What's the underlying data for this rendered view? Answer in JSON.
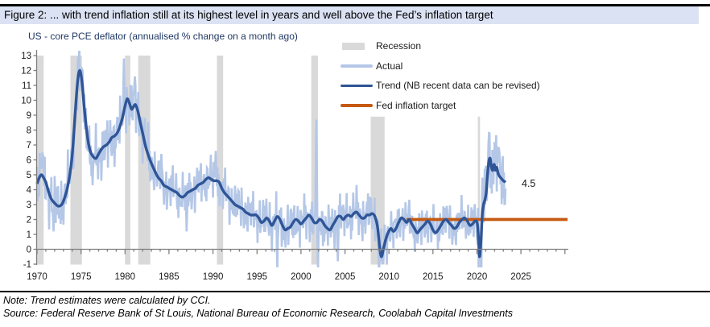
{
  "title": "Figure 2: ... with trend inflation still at its highest level in years and well above the Fed’s inflation target",
  "subtitle": "US - core PCE deflator (annualised % change on a month ago)",
  "legend": {
    "items": [
      {
        "label": "Recession",
        "swatch": "bar",
        "color": "#d9d9d9"
      },
      {
        "label": "Actual",
        "swatch": "line",
        "color": "#b4c7e7"
      },
      {
        "label": "Trend (NB recent data can be revised)",
        "swatch": "line",
        "color": "#2f5597"
      },
      {
        "label": "Fed inflation target",
        "swatch": "line",
        "color": "#c55a11"
      }
    ]
  },
  "notes": [
    "Note: Trend estimates were calculated by CCI.",
    "Source: Federal Reserve Bank of St Louis, National Bureau of Economic Research, Coolabah Capital Investments"
  ],
  "colors": {
    "title_band": "#dbe2f3",
    "subtitle": "#1f3864",
    "actual": "#b4c7e7",
    "trend": "#2f5597",
    "target": "#c55a11",
    "recession": "#d9d9d9",
    "axis": "#7f7f7f",
    "text": "#1a1a1a",
    "rule": "#000000"
  },
  "chart_data": {
    "type": "line",
    "title": "US - core PCE deflator (annualised % change on a month ago)",
    "xlabel": "",
    "ylabel": "",
    "xlim": [
      1970,
      2030.3
    ],
    "ylim": [
      -1,
      13
    ],
    "grid": false,
    "legend_position": "top-right-inside",
    "x_ticks": [
      "1970",
      "1975",
      "1980",
      "1985",
      "1990",
      "1995",
      "2000",
      "2005",
      "2010",
      "2015",
      "2020",
      "2025"
    ],
    "y_ticks": [
      13,
      12,
      11,
      10,
      9,
      8,
      7,
      6,
      5,
      4,
      3,
      2,
      1,
      0,
      -1
    ],
    "recessions": [
      {
        "from": 1970.0,
        "to": 1970.75,
        "top": 13
      },
      {
        "from": 1973.8,
        "to": 1975.1,
        "top": 13
      },
      {
        "from": 1980.0,
        "to": 1980.6,
        "top": 13
      },
      {
        "from": 1981.5,
        "to": 1982.87,
        "top": 13
      },
      {
        "from": 1990.45,
        "to": 1991.15,
        "top": 13
      },
      {
        "from": 2001.17,
        "to": 2001.92,
        "top": 13
      },
      {
        "from": 2007.92,
        "to": 2009.5,
        "top": 8.9
      },
      {
        "from": 2020.1,
        "to": 2020.35,
        "top": 8.9
      }
    ],
    "fed_target": {
      "value": 2,
      "from": 2012.0,
      "to": 2030.3
    },
    "end_label": {
      "text": "4.5",
      "year": 2025.0,
      "value": 4.4
    },
    "series_names": [
      "Actual",
      "Trend"
    ],
    "trend_points": [
      [
        1970.0,
        4.4
      ],
      [
        1970.25,
        4.8
      ],
      [
        1970.5,
        5.0
      ],
      [
        1970.75,
        4.8
      ],
      [
        1971.0,
        4.5
      ],
      [
        1971.3,
        3.9
      ],
      [
        1971.6,
        3.4
      ],
      [
        1972.0,
        3.1
      ],
      [
        1972.4,
        2.9
      ],
      [
        1972.8,
        3.0
      ],
      [
        1973.1,
        3.4
      ],
      [
        1973.4,
        4.0
      ],
      [
        1973.7,
        4.9
      ],
      [
        1974.0,
        6.3
      ],
      [
        1974.3,
        8.8
      ],
      [
        1974.6,
        11.2
      ],
      [
        1974.85,
        12.0
      ],
      [
        1975.1,
        11.3
      ],
      [
        1975.35,
        9.6
      ],
      [
        1975.6,
        8.2
      ],
      [
        1975.85,
        7.1
      ],
      [
        1976.1,
        6.5
      ],
      [
        1976.4,
        6.2
      ],
      [
        1976.7,
        6.1
      ],
      [
        1977.0,
        6.4
      ],
      [
        1977.3,
        6.7
      ],
      [
        1977.6,
        6.9
      ],
      [
        1977.9,
        7.0
      ],
      [
        1978.2,
        7.2
      ],
      [
        1978.5,
        7.5
      ],
      [
        1978.8,
        7.6
      ],
      [
        1979.1,
        7.8
      ],
      [
        1979.4,
        8.2
      ],
      [
        1979.7,
        8.8
      ],
      [
        1980.0,
        9.6
      ],
      [
        1980.25,
        10.1
      ],
      [
        1980.5,
        9.8
      ],
      [
        1980.75,
        9.4
      ],
      [
        1981.0,
        9.6
      ],
      [
        1981.2,
        9.7
      ],
      [
        1981.45,
        9.3
      ],
      [
        1981.7,
        8.6
      ],
      [
        1982.0,
        7.8
      ],
      [
        1982.3,
        7.0
      ],
      [
        1982.6,
        6.4
      ],
      [
        1982.9,
        5.9
      ],
      [
        1983.2,
        5.5
      ],
      [
        1983.5,
        5.1
      ],
      [
        1983.8,
        4.8
      ],
      [
        1984.1,
        4.6
      ],
      [
        1984.4,
        4.3
      ],
      [
        1984.7,
        4.2
      ],
      [
        1985.0,
        4.1
      ],
      [
        1985.3,
        4.0
      ],
      [
        1985.6,
        3.9
      ],
      [
        1985.9,
        3.8
      ],
      [
        1986.2,
        3.6
      ],
      [
        1986.5,
        3.5
      ],
      [
        1986.8,
        3.6
      ],
      [
        1987.1,
        3.8
      ],
      [
        1987.4,
        3.9
      ],
      [
        1987.7,
        4.0
      ],
      [
        1988.0,
        4.1
      ],
      [
        1988.3,
        4.3
      ],
      [
        1988.6,
        4.4
      ],
      [
        1988.9,
        4.5
      ],
      [
        1989.2,
        4.7
      ],
      [
        1989.5,
        4.8
      ],
      [
        1989.8,
        4.7
      ],
      [
        1990.1,
        4.6
      ],
      [
        1990.4,
        4.6
      ],
      [
        1990.7,
        4.5
      ],
      [
        1991.0,
        4.1
      ],
      [
        1991.3,
        3.8
      ],
      [
        1991.6,
        3.6
      ],
      [
        1991.9,
        3.4
      ],
      [
        1992.2,
        3.2
      ],
      [
        1992.5,
        3.0
      ],
      [
        1992.8,
        2.9
      ],
      [
        1993.1,
        2.8
      ],
      [
        1993.4,
        2.7
      ],
      [
        1993.7,
        2.5
      ],
      [
        1994.0,
        2.4
      ],
      [
        1994.3,
        2.3
      ],
      [
        1994.6,
        2.3
      ],
      [
        1994.9,
        2.3
      ],
      [
        1995.2,
        2.1
      ],
      [
        1995.5,
        1.8
      ],
      [
        1995.8,
        1.9
      ],
      [
        1996.1,
        2.1
      ],
      [
        1996.4,
        1.9
      ],
      [
        1996.7,
        1.6
      ],
      [
        1997.0,
        1.9
      ],
      [
        1997.3,
        2.2
      ],
      [
        1997.6,
        2.0
      ],
      [
        1997.9,
        1.6
      ],
      [
        1998.2,
        1.3
      ],
      [
        1998.5,
        1.4
      ],
      [
        1998.8,
        1.5
      ],
      [
        1999.1,
        1.8
      ],
      [
        1999.4,
        2.0
      ],
      [
        1999.7,
        1.9
      ],
      [
        2000.0,
        1.7
      ],
      [
        2000.3,
        1.9
      ],
      [
        2000.6,
        2.1
      ],
      [
        2000.9,
        2.3
      ],
      [
        2001.2,
        2.1
      ],
      [
        2001.5,
        1.8
      ],
      [
        2001.8,
        1.8
      ],
      [
        2002.1,
        2.0
      ],
      [
        2002.4,
        1.9
      ],
      [
        2002.7,
        1.6
      ],
      [
        2003.0,
        1.4
      ],
      [
        2003.3,
        1.3
      ],
      [
        2003.6,
        1.6
      ],
      [
        2003.9,
        1.9
      ],
      [
        2004.2,
        2.2
      ],
      [
        2004.5,
        2.2
      ],
      [
        2004.8,
        2.0
      ],
      [
        2005.1,
        2.2
      ],
      [
        2005.4,
        2.3
      ],
      [
        2005.7,
        2.2
      ],
      [
        2006.0,
        2.4
      ],
      [
        2006.3,
        2.5
      ],
      [
        2006.6,
        2.3
      ],
      [
        2006.9,
        2.1
      ],
      [
        2007.2,
        2.1
      ],
      [
        2007.5,
        2.3
      ],
      [
        2007.8,
        2.3
      ],
      [
        2008.1,
        2.4
      ],
      [
        2008.4,
        2.2
      ],
      [
        2008.7,
        1.5
      ],
      [
        2008.95,
        0.1
      ],
      [
        2009.15,
        -0.5
      ],
      [
        2009.4,
        0.1
      ],
      [
        2009.65,
        0.7
      ],
      [
        2009.9,
        1.1
      ],
      [
        2010.2,
        1.4
      ],
      [
        2010.5,
        1.2
      ],
      [
        2010.8,
        1.4
      ],
      [
        2011.1,
        1.8
      ],
      [
        2011.4,
        2.1
      ],
      [
        2011.7,
        2.0
      ],
      [
        2012.0,
        1.8
      ],
      [
        2012.3,
        2.0
      ],
      [
        2012.6,
        1.7
      ],
      [
        2012.9,
        1.4
      ],
      [
        2013.2,
        1.1
      ],
      [
        2013.5,
        1.3
      ],
      [
        2013.8,
        1.5
      ],
      [
        2014.1,
        1.7
      ],
      [
        2014.4,
        1.9
      ],
      [
        2014.7,
        1.7
      ],
      [
        2015.0,
        1.3
      ],
      [
        2015.3,
        1.1
      ],
      [
        2015.6,
        1.3
      ],
      [
        2015.9,
        1.6
      ],
      [
        2016.2,
        1.9
      ],
      [
        2016.5,
        2.0
      ],
      [
        2016.8,
        1.8
      ],
      [
        2017.1,
        1.6
      ],
      [
        2017.4,
        1.4
      ],
      [
        2017.7,
        1.5
      ],
      [
        2018.0,
        1.8
      ],
      [
        2018.3,
        2.0
      ],
      [
        2018.6,
        2.1
      ],
      [
        2018.9,
        1.9
      ],
      [
        2019.2,
        1.6
      ],
      [
        2019.5,
        1.7
      ],
      [
        2019.8,
        1.9
      ],
      [
        2020.05,
        1.7
      ],
      [
        2020.2,
        0.5
      ],
      [
        2020.3,
        -0.5
      ],
      [
        2020.45,
        0.5
      ],
      [
        2020.6,
        2.3
      ],
      [
        2020.75,
        3.0
      ],
      [
        2020.9,
        3.3
      ],
      [
        2021.05,
        3.8
      ],
      [
        2021.2,
        5.0
      ],
      [
        2021.35,
        5.9
      ],
      [
        2021.5,
        6.1
      ],
      [
        2021.65,
        5.5
      ],
      [
        2021.8,
        5.3
      ],
      [
        2021.95,
        5.7
      ],
      [
        2022.1,
        5.3
      ],
      [
        2022.25,
        5.5
      ],
      [
        2022.4,
        5.1
      ],
      [
        2022.55,
        4.9
      ],
      [
        2022.7,
        4.8
      ],
      [
        2022.85,
        4.7
      ],
      [
        2023.0,
        4.6
      ],
      [
        2023.25,
        4.5
      ]
    ],
    "actual": {
      "description": "monthly annualised %MoM series; noisy band around trend",
      "range": [
        1970.0,
        2023.3
      ],
      "eras": [
        {
          "from": 1970,
          "to": 1983,
          "amp": 1.25
        },
        {
          "from": 1983,
          "to": 1996,
          "amp": 1.0
        },
        {
          "from": 1996,
          "to": 2010,
          "amp": 1.05
        },
        {
          "from": 2010,
          "to": 2020,
          "amp": 0.9
        },
        {
          "from": 2020,
          "to": 2023.4,
          "amp": 1.55
        }
      ],
      "spikes": [
        [
          1970.6,
          6.5
        ],
        [
          1971.9,
          1.2
        ],
        [
          1974.7,
          12.9
        ],
        [
          1976.3,
          4.3
        ],
        [
          1979.9,
          12.8
        ],
        [
          1981.1,
          11.6
        ],
        [
          1984.1,
          6.4
        ],
        [
          1987.0,
          1.2
        ],
        [
          1990.3,
          6.6
        ],
        [
          1997.3,
          -1.3
        ],
        [
          2001.75,
          8.7
        ],
        [
          2001.95,
          -1.3
        ],
        [
          2004.2,
          -0.8
        ],
        [
          2008.9,
          -1.8
        ],
        [
          2009.3,
          -1.0
        ],
        [
          2020.25,
          -2.2
        ],
        [
          2020.5,
          -1.5
        ],
        [
          2020.6,
          4.8
        ],
        [
          2021.35,
          7.8
        ],
        [
          2022.0,
          7.2
        ],
        [
          2022.45,
          6.8
        ]
      ]
    }
  }
}
